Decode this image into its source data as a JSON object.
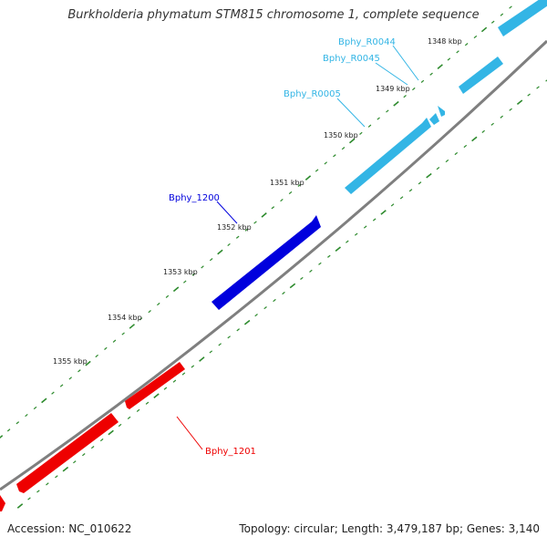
{
  "title": "Burkholderia phymatum STM815 chromosome 1, complete sequence",
  "accession": "Accession: NC_010622",
  "summary": "Topology: circular; Length: 3,479,187 bp; Genes: 3,140",
  "colors": {
    "backbone": "#808080",
    "tick": "#2e8b2e",
    "rna_gene": "#33b5e5",
    "highlight_gene": "#0000dd",
    "gene_other_strand": "#ee0000",
    "label_text": "#222222"
  },
  "scale_labels": [
    "1348 kbp",
    "1349 kbp",
    "1350 kbp",
    "1351 kbp",
    "1352 kbp",
    "1353 kbp",
    "1354 kbp",
    "1355 kbp"
  ],
  "feature_labels": {
    "r0044": "Bphy_R0044",
    "r0045": "Bphy_R0045",
    "r0005": "Bphy_R0005",
    "gene1200": "Bphy_1200",
    "gene1201": "Bphy_1201"
  }
}
